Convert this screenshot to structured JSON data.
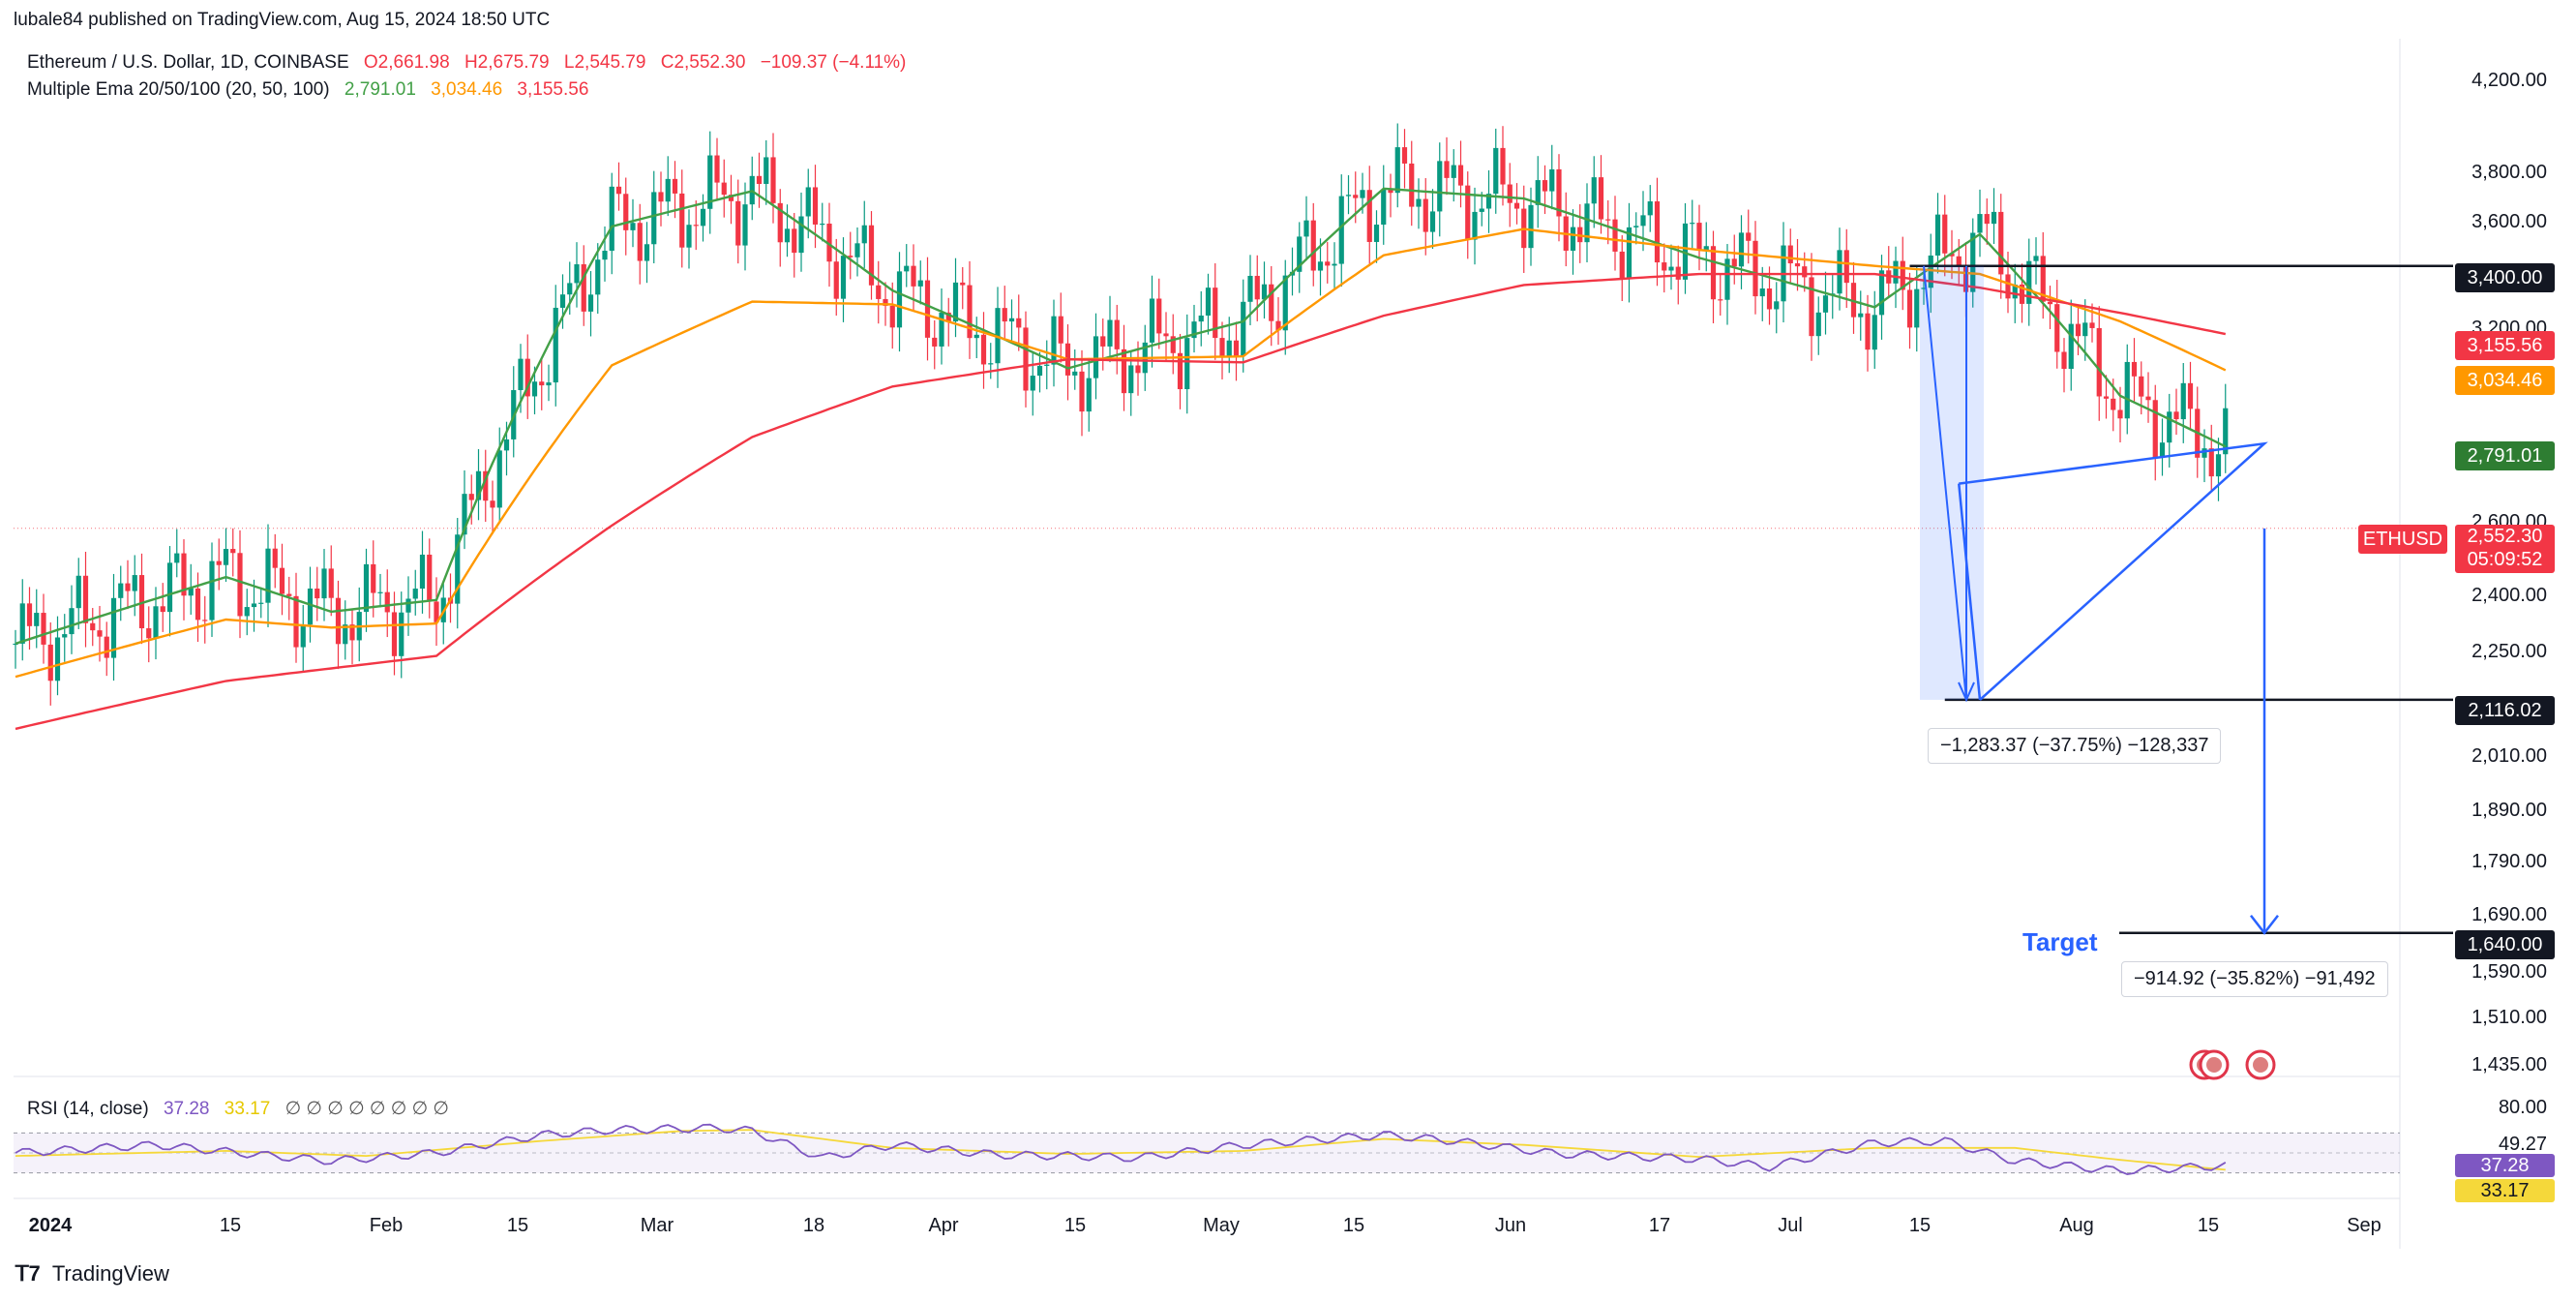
{
  "published_by": "lubale84 published on TradingView.com, Aug 15, 2024 18:50 UTC",
  "symbol_line": {
    "name": "Ethereum / U.S. Dollar, 1D, COINBASE",
    "o": "O2,661.98",
    "h": "H2,675.79",
    "l": "L2,545.79",
    "c": "C2,552.30",
    "change": "−109.37 (−4.11%)"
  },
  "ema_line": {
    "name": "Multiple Ema 20/50/100 (20, 50, 100)",
    "v20": "2,791.01",
    "v50": "3,034.46",
    "v100": "3,155.56"
  },
  "rsi_line": {
    "name": "RSI (14, close)",
    "v1": "37.28",
    "v2": "33.17",
    "extra": "∅ ∅ ∅ ∅ ∅ ∅ ∅ ∅"
  },
  "price_axis": [
    "4,200.00",
    "3,800.00",
    "3,600.00",
    "3,200.00",
    "2,600.00",
    "2,400.00",
    "2,250.00",
    "2,010.00",
    "1,890.00",
    "1,790.00",
    "1,690.00",
    "1,590.00",
    "1,510.00",
    "1,435.00"
  ],
  "rsi_axis": [
    "80.00",
    "49.27"
  ],
  "price_tags": {
    "level_3400": "3,400.00",
    "ema100": "3,155.56",
    "ema50": "3,034.46",
    "ema20": "2,791.01",
    "symbol": "ETHUSD",
    "last": "2,552.30",
    "countdown": "05:09:52",
    "level_2116": "2,116.02",
    "level_1640": "1,640.00",
    "rsi": "37.28",
    "rsi_ma": "33.17"
  },
  "time_axis": [
    "2024",
    "15",
    "Feb",
    "15",
    "Mar",
    "18",
    "Apr",
    "15",
    "May",
    "15",
    "Jun",
    "17",
    "Jul",
    "15",
    "Aug",
    "15",
    "Sep"
  ],
  "annotations": {
    "measure_1": "−1,283.37 (−37.75%) −128,337",
    "measure_2": "−914.92 (−35.82%) −91,492",
    "target": "Target"
  },
  "footer": "TradingView",
  "colors": {
    "up": "#089981",
    "down": "#f23645",
    "ema20": "#43a047",
    "ema50": "#ff9800",
    "ema100": "#f23645",
    "drawing": "#2962ff",
    "rsi": "#7e57c2",
    "rsi_ma": "#f5d83a"
  },
  "chart_data": {
    "type": "candlestick",
    "title": "Ethereum / U.S. Dollar, 1D, COINBASE",
    "x_range": [
      "2023-12-22",
      "2024-09-10"
    ],
    "y_scale": "log",
    "ylim": [
      1435,
      4200
    ],
    "rsi_ylim": [
      20,
      80
    ],
    "levels": [
      3400,
      2116.02,
      1640
    ],
    "series": [
      {
        "name": "EMA 20",
        "values": [
          [
            0,
            2250
          ],
          [
            30,
            2420
          ],
          [
            45,
            2330
          ],
          [
            60,
            2360
          ],
          [
            85,
            3550
          ],
          [
            105,
            3690
          ],
          [
            125,
            3310
          ],
          [
            150,
            3040
          ],
          [
            175,
            3200
          ],
          [
            195,
            3700
          ],
          [
            215,
            3660
          ],
          [
            240,
            3430
          ],
          [
            265,
            3250
          ],
          [
            280,
            3520
          ],
          [
            300,
            2950
          ],
          [
            315,
            2791
          ]
        ]
      },
      {
        "name": "EMA 50",
        "values": [
          [
            0,
            2170
          ],
          [
            30,
            2310
          ],
          [
            45,
            2290
          ],
          [
            60,
            2300
          ],
          [
            85,
            3050
          ],
          [
            105,
            3270
          ],
          [
            125,
            3260
          ],
          [
            150,
            3070
          ],
          [
            175,
            3080
          ],
          [
            195,
            3440
          ],
          [
            215,
            3540
          ],
          [
            240,
            3460
          ],
          [
            265,
            3400
          ],
          [
            280,
            3370
          ],
          [
            300,
            3200
          ],
          [
            315,
            3034
          ]
        ]
      },
      {
        "name": "EMA 100",
        "values": [
          [
            0,
            2050
          ],
          [
            30,
            2160
          ],
          [
            60,
            2220
          ],
          [
            85,
            2560
          ],
          [
            105,
            2820
          ],
          [
            125,
            2980
          ],
          [
            150,
            3070
          ],
          [
            175,
            3060
          ],
          [
            195,
            3220
          ],
          [
            215,
            3330
          ],
          [
            240,
            3370
          ],
          [
            265,
            3370
          ],
          [
            280,
            3320
          ],
          [
            300,
            3230
          ],
          [
            315,
            3156
          ]
        ]
      }
    ],
    "rsi": [
      [
        0,
        50
      ],
      [
        20,
        58
      ],
      [
        35,
        48
      ],
      [
        45,
        42
      ],
      [
        60,
        50
      ],
      [
        75,
        68
      ],
      [
        85,
        73
      ],
      [
        100,
        75
      ],
      [
        105,
        72
      ],
      [
        115,
        45
      ],
      [
        125,
        58
      ],
      [
        140,
        48
      ],
      [
        150,
        47
      ],
      [
        160,
        45
      ],
      [
        175,
        58
      ],
      [
        195,
        68
      ],
      [
        205,
        62
      ],
      [
        220,
        49
      ],
      [
        240,
        44
      ],
      [
        250,
        36
      ],
      [
        265,
        60
      ],
      [
        275,
        62
      ],
      [
        285,
        42
      ],
      [
        300,
        32
      ],
      [
        315,
        37.28
      ]
    ],
    "rsi_ma": [
      [
        0,
        47
      ],
      [
        30,
        52
      ],
      [
        50,
        47
      ],
      [
        75,
        62
      ],
      [
        95,
        72
      ],
      [
        105,
        73
      ],
      [
        125,
        55
      ],
      [
        150,
        49
      ],
      [
        175,
        52
      ],
      [
        195,
        64
      ],
      [
        215,
        58
      ],
      [
        240,
        46
      ],
      [
        265,
        55
      ],
      [
        285,
        55
      ],
      [
        300,
        43
      ],
      [
        315,
        33.17
      ]
    ],
    "last_close": 2552.3
  }
}
